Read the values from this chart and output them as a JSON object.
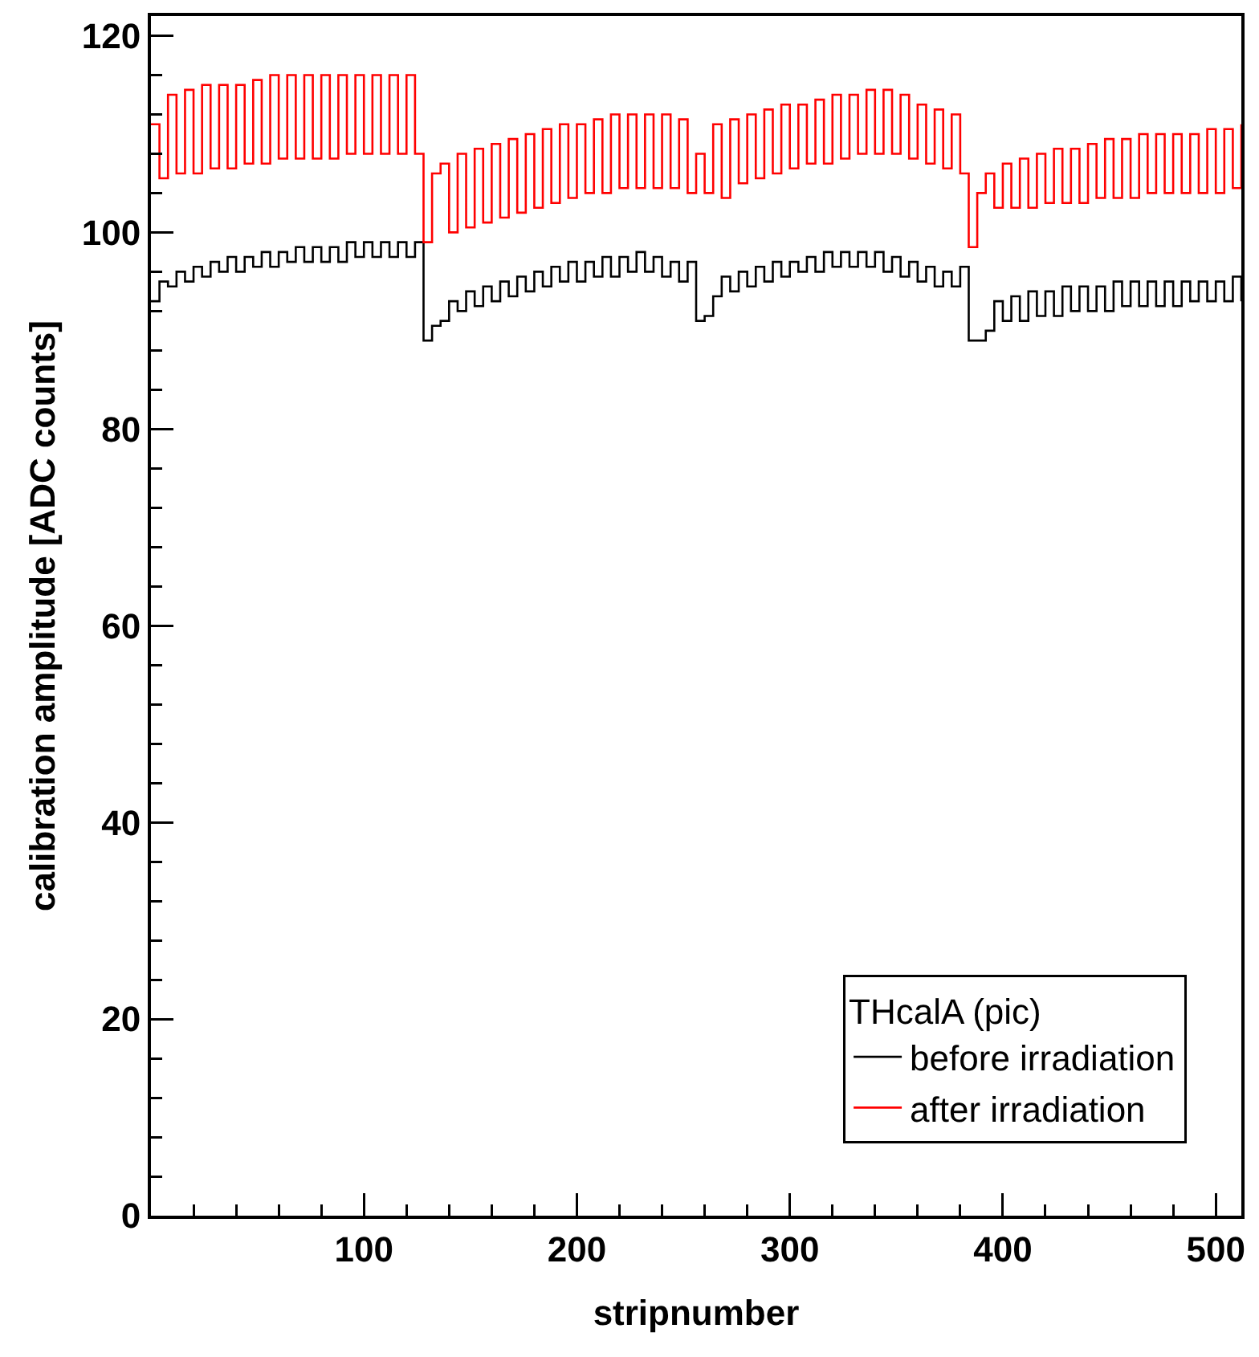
{
  "chart_data": {
    "type": "step",
    "xlabel": "stripnumber",
    "ylabel": "calibration amplitude [ADC counts]",
    "legend_title": "THcalA (pic)",
    "legend": "bottom right",
    "grid": false,
    "xlim": [
      0,
      512
    ],
    "xticks": [
      100,
      200,
      300,
      400,
      500
    ],
    "ylim": [
      0,
      122
    ],
    "yticks": [
      0,
      20,
      40,
      60,
      80,
      100,
      120
    ],
    "x": [
      0,
      4,
      8,
      12,
      16,
      20,
      24,
      28,
      32,
      36,
      40,
      44,
      48,
      52,
      56,
      60,
      64,
      68,
      72,
      76,
      80,
      84,
      88,
      92,
      96,
      100,
      104,
      108,
      112,
      116,
      120,
      124,
      128,
      132,
      136,
      140,
      144,
      148,
      152,
      156,
      160,
      164,
      168,
      172,
      176,
      180,
      184,
      188,
      192,
      196,
      200,
      204,
      208,
      212,
      216,
      220,
      224,
      228,
      232,
      236,
      240,
      244,
      248,
      252,
      256,
      260,
      264,
      268,
      272,
      276,
      280,
      284,
      288,
      292,
      296,
      300,
      304,
      308,
      312,
      316,
      320,
      324,
      328,
      332,
      336,
      340,
      344,
      348,
      352,
      356,
      360,
      364,
      368,
      372,
      376,
      380,
      384,
      388,
      392,
      396,
      400,
      404,
      408,
      412,
      416,
      420,
      424,
      428,
      432,
      436,
      440,
      444,
      448,
      452,
      456,
      460,
      464,
      468,
      472,
      476,
      480,
      484,
      488,
      492,
      496,
      500,
      504,
      508,
      512
    ],
    "series": [
      {
        "name": "before irradiation",
        "color": "#000000",
        "values": [
          93,
          95,
          94.5,
          96,
          95,
          96.5,
          95.5,
          97,
          96,
          97.5,
          96,
          97.5,
          96.5,
          98,
          96.5,
          98,
          97,
          98.5,
          97,
          98.5,
          97,
          98.5,
          97,
          99,
          97.5,
          99,
          97.5,
          99,
          97.5,
          99,
          97.5,
          99,
          89,
          90.5,
          91,
          93,
          92,
          94,
          92.5,
          94.5,
          93,
          95,
          93.5,
          95.5,
          94,
          96,
          94.5,
          96.5,
          95,
          97,
          95,
          97,
          95.5,
          97.5,
          95.5,
          97.5,
          96,
          98,
          96,
          97.5,
          95.5,
          97,
          95,
          97,
          91,
          91.5,
          93.5,
          95.5,
          94,
          96,
          94.5,
          96.5,
          95,
          97,
          95.5,
          97,
          96,
          97.5,
          96,
          98,
          96.5,
          98,
          96.5,
          98,
          96.5,
          98,
          96,
          97.5,
          95.5,
          97,
          95,
          96.5,
          94.5,
          96,
          94.5,
          96.5,
          89,
          89,
          90,
          93,
          91,
          93.5,
          91,
          94,
          91.5,
          94,
          91.5,
          94.5,
          92,
          94.5,
          92,
          94.5,
          92,
          95,
          92.5,
          95,
          92.5,
          95,
          92.5,
          95,
          92.5,
          95,
          93,
          95,
          93,
          95,
          93,
          95.5,
          93
        ]
      },
      {
        "name": "after irradiation",
        "color": "#ff0000",
        "values": [
          111,
          105.5,
          114,
          106,
          114.5,
          106,
          115,
          106.5,
          115,
          106.5,
          115,
          107,
          115.5,
          107,
          116,
          107.5,
          116,
          107.5,
          116,
          107.5,
          116,
          107.5,
          116,
          108,
          116,
          108,
          116,
          108,
          116,
          108,
          116,
          108,
          99,
          106,
          107,
          100,
          108,
          100.5,
          108.5,
          101,
          109,
          101.5,
          109.5,
          102,
          110,
          102.5,
          110.5,
          103,
          111,
          103.5,
          111,
          104,
          111.5,
          104,
          112,
          104.5,
          112,
          104.5,
          112,
          104.5,
          112,
          104.5,
          111.5,
          104,
          108,
          104,
          111,
          103.5,
          111.5,
          105,
          112,
          105.5,
          112.5,
          106,
          113,
          106.5,
          113,
          107,
          113.5,
          107,
          114,
          107.5,
          114,
          108,
          114.5,
          108,
          114.5,
          108,
          114,
          107.5,
          113,
          107,
          112.5,
          106.5,
          112,
          106,
          98.5,
          104,
          106,
          102.5,
          107,
          102.5,
          107.5,
          102.5,
          108,
          103,
          108.5,
          103,
          108.5,
          103,
          109,
          103.5,
          109.5,
          103.5,
          109.5,
          103.5,
          110,
          104,
          110,
          104,
          110,
          104,
          110,
          104,
          110.5,
          104,
          110.5,
          104.5,
          111
        ]
      }
    ]
  }
}
